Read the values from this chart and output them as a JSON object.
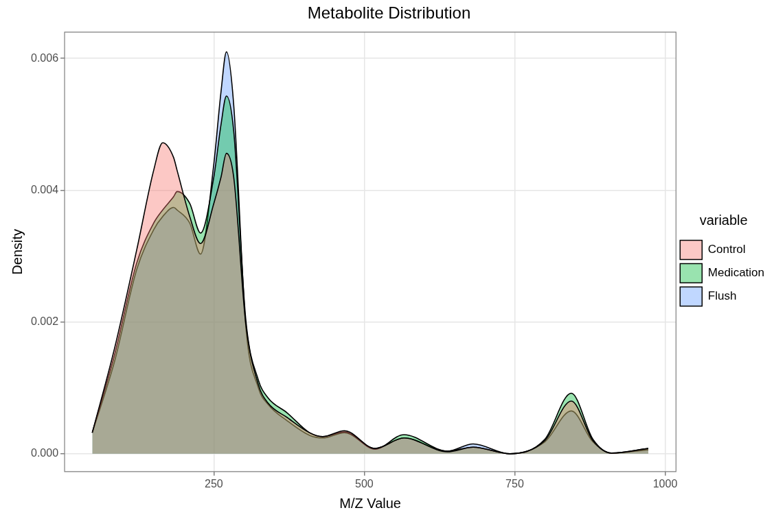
{
  "chart_data": {
    "type": "area",
    "title": "Metabolite Distribution",
    "xlabel": "M/Z Value",
    "ylabel": "Density",
    "legend_title": "variable",
    "x": [
      48,
      85,
      122,
      150,
      165,
      183,
      189,
      210,
      228,
      250,
      262,
      271,
      283,
      303,
      324,
      340,
      372,
      409,
      431,
      467,
      518,
      566,
      638,
      681,
      742,
      800,
      844,
      880,
      911,
      972
    ],
    "series": [
      {
        "name": "Control",
        "color": "#f8766d",
        "values": [
          0.00032,
          0.0016,
          0.0031,
          0.0043,
          0.00472,
          0.0045,
          0.0043,
          0.0036,
          0.00319,
          0.0038,
          0.0042,
          0.00456,
          0.0042,
          0.00198,
          0.00105,
          0.00077,
          0.00055,
          0.00032,
          0.00026,
          0.00035,
          8e-05,
          0.00024,
          3e-05,
          0.0001,
          0,
          0.0002,
          0.0008,
          0.0002,
          1e-05,
          8e-05
        ]
      },
      {
        "name": "Medication",
        "color": "#00ba38",
        "values": [
          0.00032,
          0.0015,
          0.0029,
          0.0035,
          0.0037,
          0.0039,
          0.00398,
          0.0038,
          0.00335,
          0.0042,
          0.005,
          0.00543,
          0.0049,
          0.00205,
          0.00112,
          0.00085,
          0.00062,
          0.00032,
          0.00026,
          0.00033,
          7e-05,
          0.00029,
          4e-05,
          0.0001,
          0,
          0.00022,
          0.00092,
          0.00022,
          1e-05,
          8e-05
        ]
      },
      {
        "name": "Flush",
        "color": "#619cff",
        "values": [
          0.00032,
          0.0014,
          0.0028,
          0.0034,
          0.0036,
          0.00374,
          0.0037,
          0.0035,
          0.00303,
          0.0044,
          0.0055,
          0.0061,
          0.0053,
          0.00195,
          0.001,
          0.00075,
          0.0005,
          0.00028,
          0.00024,
          0.00032,
          8e-05,
          0.00024,
          4e-05,
          0.00015,
          0,
          0.00018,
          0.00065,
          0.00018,
          1e-05,
          6e-05
        ]
      }
    ],
    "xlim": [
      2,
      1018
    ],
    "xticks": [
      250,
      500,
      750,
      1000
    ],
    "ylim": [
      -0.00027,
      0.0064
    ],
    "yticks": [
      {
        "value": 0,
        "label": "0.000"
      },
      {
        "value": 0.002,
        "label": "0.002"
      },
      {
        "value": 0.004,
        "label": "0.004"
      },
      {
        "value": 0.006,
        "label": "0.006"
      }
    ],
    "grid": true,
    "legend": "right"
  }
}
